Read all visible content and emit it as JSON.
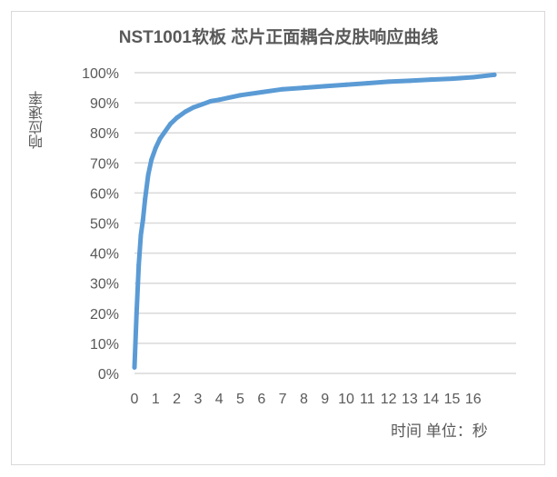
{
  "chart_data": {
    "type": "line",
    "title": "NST1001软板 芯片正面耦合皮肤响应曲线",
    "ylabel": "响应速率",
    "xlabel": "时间  单位：秒",
    "x_tick_labels": [
      "0",
      "1",
      "2",
      "3",
      "4",
      "5",
      "6",
      "7",
      "8",
      "9",
      "10",
      "11",
      "12",
      "13",
      "14",
      "15",
      "16"
    ],
    "y_tick_labels": [
      "0%",
      "10%",
      "20%",
      "30%",
      "40%",
      "50%",
      "60%",
      "70%",
      "80%",
      "90%",
      "100%"
    ],
    "xlim": [
      0,
      17.3
    ],
    "ylim": [
      0,
      100
    ],
    "grid": true,
    "series": [
      {
        "color": "#5b9bd5",
        "x": [
          0,
          0.1,
          0.2,
          0.3,
          0.4,
          0.5,
          0.65,
          0.8,
          1.0,
          1.2,
          1.4,
          1.7,
          2.0,
          2.4,
          2.8,
          3.2,
          3.6,
          4,
          5,
          6,
          7,
          8,
          9,
          10,
          11,
          12,
          13,
          14,
          15,
          16,
          17
        ],
        "y": [
          2,
          20,
          36,
          46,
          51,
          58,
          66,
          71,
          75,
          78,
          80,
          83,
          85,
          87,
          88.5,
          89.5,
          90.5,
          91,
          92.5,
          93.5,
          94.5,
          95,
          95.5,
          96,
          96.5,
          97,
          97.3,
          97.7,
          98,
          98.5,
          99.3
        ]
      }
    ]
  }
}
